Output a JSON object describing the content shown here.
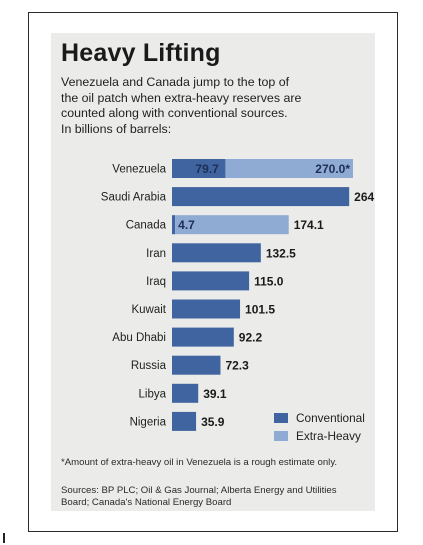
{
  "title": "Heavy Lifting",
  "subtitle": "Venezuela and Canada jump to the top of\nthe oil patch when extra-heavy reserves are\ncounted along with conventional sources.\nIn billions of barrels:",
  "colors": {
    "conventional": "#3f64a0",
    "extra_heavy": "#8faad3",
    "panel": "#ebebe9",
    "label_text": "#222222",
    "bar_label_light": "#1d2f55"
  },
  "chart_data": {
    "type": "bar",
    "orientation": "horizontal",
    "stacked": true,
    "unit": "billions of barrels",
    "categories": [
      "Venezuela",
      "Saudi Arabia",
      "Canada",
      "Iran",
      "Iraq",
      "Kuwait",
      "Abu Dhabi",
      "Russia",
      "Libya",
      "Nigeria"
    ],
    "series": [
      {
        "name": "Conventional",
        "values": [
          79.7,
          264.3,
          4.7,
          132.5,
          115.0,
          101.5,
          92.2,
          72.3,
          39.1,
          35.9
        ]
      },
      {
        "name": "Extra-Heavy",
        "values": [
          190.3,
          0,
          169.4,
          0,
          0,
          0,
          0,
          0,
          0,
          0
        ]
      }
    ],
    "value_labels": [
      [
        "79.7",
        "270.0*"
      ],
      [
        "264.3"
      ],
      [
        "4.7",
        "174.1"
      ],
      [
        "132.5"
      ],
      [
        "115.0"
      ],
      [
        "101.5"
      ],
      [
        "92.2"
      ],
      [
        "72.3"
      ],
      [
        "39.1"
      ],
      [
        "35.9"
      ]
    ],
    "xlim": [
      0,
      270
    ],
    "grid": false,
    "legend_position": "bottom-right"
  },
  "legend": {
    "conventional_label": "Conventional",
    "extra_heavy_label": "Extra-Heavy"
  },
  "footnote": "*Amount of extra-heavy oil in Venezuela is a rough estimate only.",
  "sources": "Sources: BP PLC; Oil & Gas Journal; Alberta Energy and Utilities Board; Canada's National Energy Board"
}
